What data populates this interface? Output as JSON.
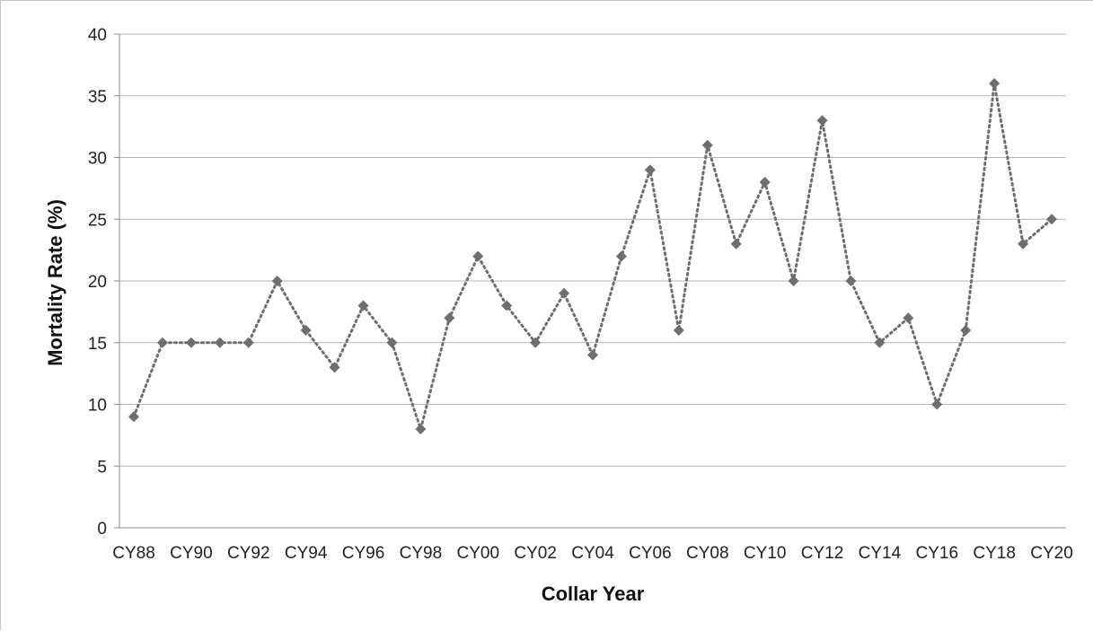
{
  "chart_data": {
    "type": "line",
    "title": "",
    "xlabel": "Collar Year",
    "ylabel": "Mortality Rate (%)",
    "ylim": [
      0,
      40
    ],
    "yticks": [
      0,
      5,
      10,
      15,
      20,
      25,
      30,
      35,
      40
    ],
    "x_tick_labels": [
      "CY88",
      "CY90",
      "CY92",
      "CY94",
      "CY96",
      "CY98",
      "CY00",
      "CY02",
      "CY04",
      "CY06",
      "CY08",
      "CY10",
      "CY12",
      "CY14",
      "CY16",
      "CY18",
      "CY20"
    ],
    "categories": [
      "CY88",
      "CY89",
      "CY90",
      "CY91",
      "CY92",
      "CY93",
      "CY94",
      "CY95",
      "CY96",
      "CY97",
      "CY98",
      "CY99",
      "CY00",
      "CY01",
      "CY02",
      "CY03",
      "CY04",
      "CY05",
      "CY06",
      "CY07",
      "CY08",
      "CY09",
      "CY10",
      "CY11",
      "CY12",
      "CY13",
      "CY14",
      "CY15",
      "CY16",
      "CY17",
      "CY18",
      "CY19",
      "CY20"
    ],
    "series": [
      {
        "values": [
          9,
          15,
          15,
          15,
          15,
          20,
          16,
          13,
          18,
          15,
          8,
          17,
          22,
          18,
          15,
          19,
          14,
          22,
          29,
          16,
          31,
          23,
          28,
          20,
          33,
          20,
          15,
          17,
          10,
          16,
          36,
          23,
          25
        ],
        "color": "#6e6e6e",
        "line_style": "dotted",
        "marker": "diamond"
      }
    ],
    "grid": true,
    "legend": "none",
    "colors": {
      "gridline": "#b4b4b4",
      "axis": "#8c8c8c",
      "series": "#6e6e6e"
    }
  }
}
